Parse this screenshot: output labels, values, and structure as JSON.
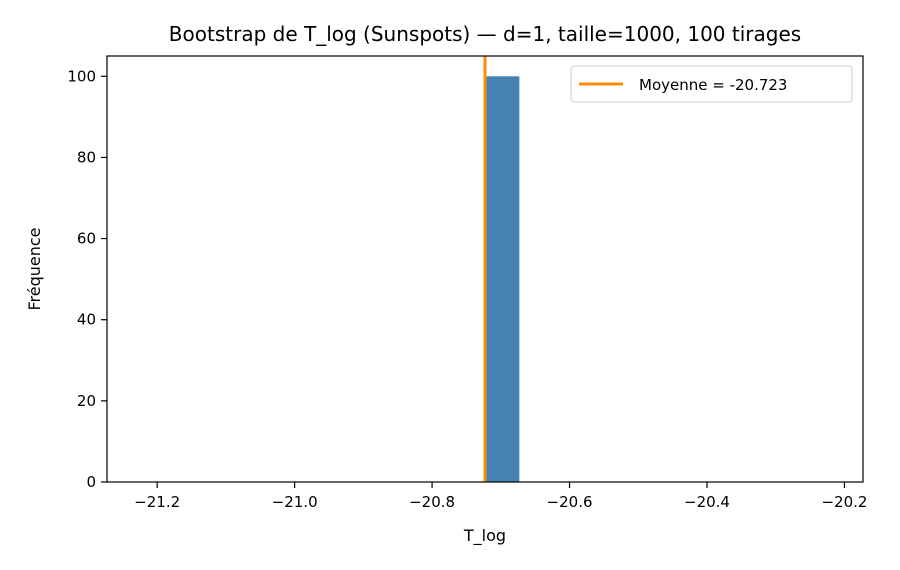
{
  "chart_data": {
    "type": "bar",
    "title": "Bootstrap de T_log (Sunspots) — d=1, taille=1000, 100 tirages",
    "xlabel": "T_log",
    "ylabel": "Fréquence",
    "xlim": [
      -21.273,
      -20.173
    ],
    "ylim": [
      0,
      105
    ],
    "x_ticks": [
      -21.2,
      -21.0,
      -20.8,
      -20.6,
      -20.4,
      -20.2
    ],
    "x_tick_labels": [
      "−21.2",
      "−21.0",
      "−20.8",
      "−20.6",
      "−20.4",
      "−20.2"
    ],
    "y_ticks": [
      0,
      20,
      40,
      60,
      80,
      100
    ],
    "y_tick_labels": [
      "0",
      "20",
      "40",
      "60",
      "80",
      "100"
    ],
    "bars": [
      {
        "x0": -20.723,
        "x1": -20.673,
        "value": 100
      }
    ],
    "bar_color": "#4682b4",
    "mean_line": {
      "value": -20.723,
      "label": "Moyenne = -20.723",
      "color": "#ff8c00"
    },
    "legend": {
      "position": "top-right",
      "entries": [
        "Moyenne = -20.723"
      ]
    },
    "grid": false
  }
}
